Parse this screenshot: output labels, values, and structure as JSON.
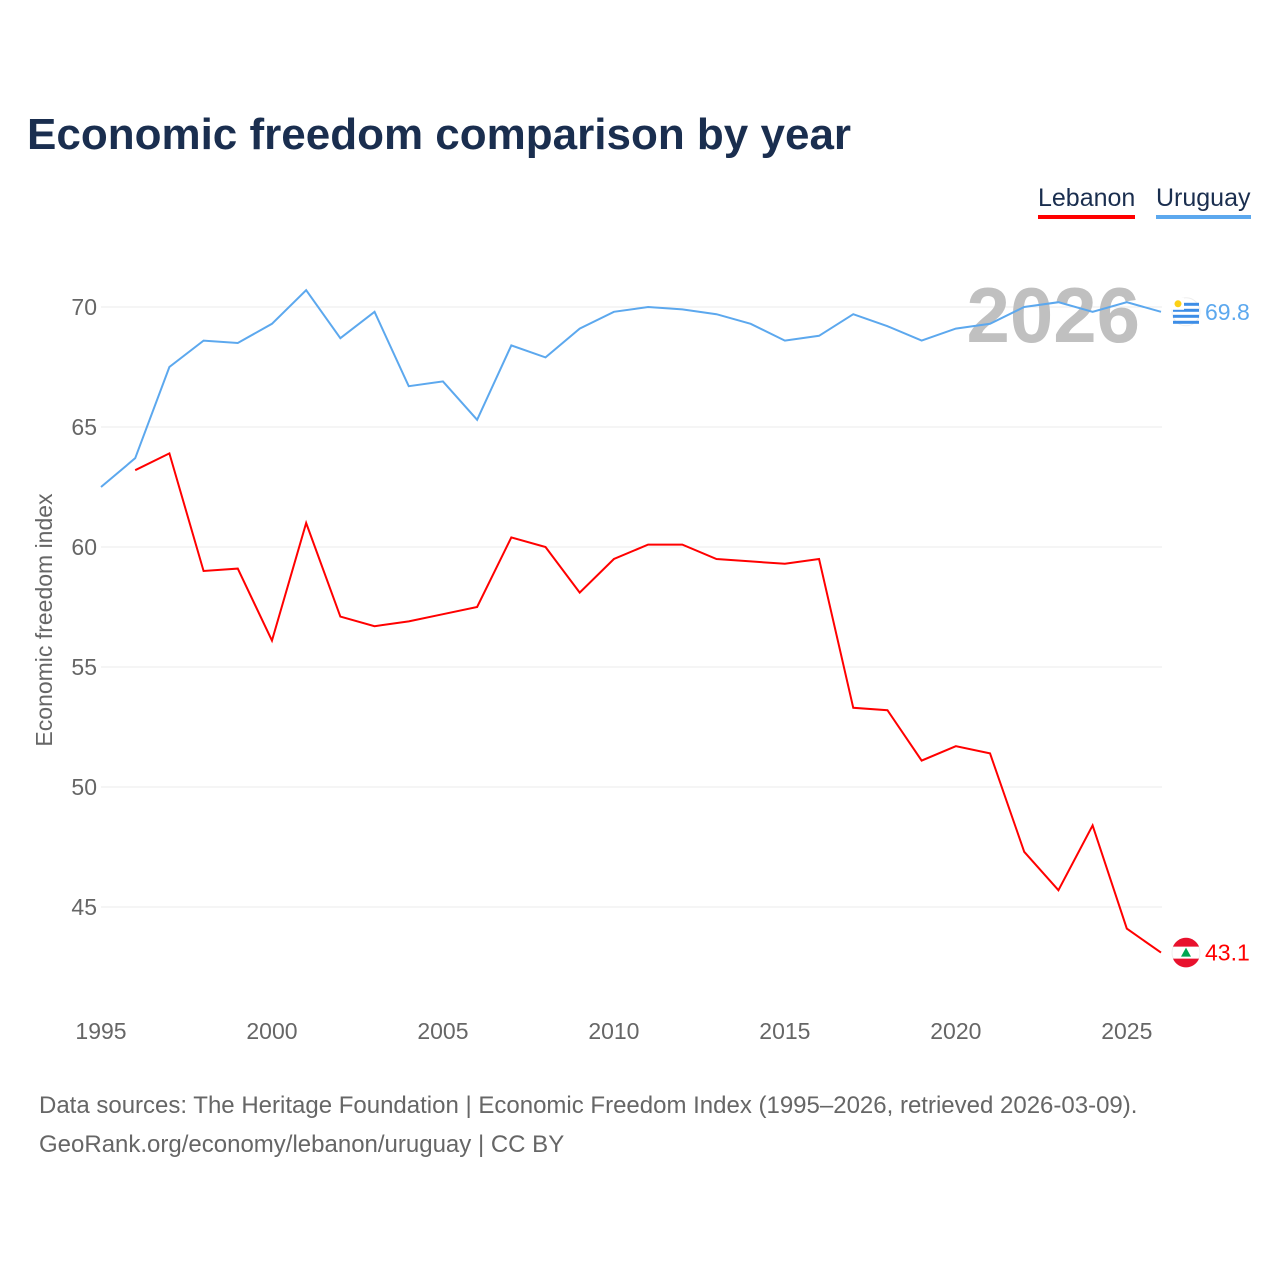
{
  "chart_data": {
    "type": "line",
    "title": "Economic freedom comparison by year",
    "xlabel": "",
    "ylabel": "Economic freedom index",
    "xlim": [
      1995,
      2026
    ],
    "ylim": [
      41.5,
      72
    ],
    "x_ticks": [
      "1995",
      "2000",
      "2005",
      "2010",
      "2015",
      "2020",
      "2025"
    ],
    "y_ticks": [
      "45",
      "50",
      "55",
      "60",
      "65",
      "70"
    ],
    "grid": true,
    "legend_placement": "top-right",
    "year_watermark": "2026",
    "series": [
      {
        "name": "Lebanon",
        "color": "#ff0000",
        "end_label": "43.1",
        "x": [
          1996,
          1997,
          1998,
          1999,
          2000,
          2001,
          2002,
          2003,
          2004,
          2005,
          2006,
          2007,
          2008,
          2009,
          2010,
          2011,
          2012,
          2013,
          2014,
          2015,
          2016,
          2017,
          2018,
          2019,
          2020,
          2021,
          2022,
          2023,
          2024,
          2025,
          2026
        ],
        "values": [
          63.2,
          63.9,
          59.0,
          59.1,
          56.1,
          61.0,
          57.1,
          56.7,
          56.9,
          57.2,
          57.5,
          60.4,
          60.0,
          58.1,
          59.5,
          60.1,
          60.1,
          59.5,
          59.4,
          59.3,
          59.5,
          53.3,
          53.2,
          51.1,
          51.7,
          51.4,
          47.3,
          45.7,
          48.4,
          44.1,
          43.1
        ]
      },
      {
        "name": "Uruguay",
        "color": "#5ca8ee",
        "end_label": "69.8",
        "x": [
          1995,
          1996,
          1997,
          1998,
          1999,
          2000,
          2001,
          2002,
          2003,
          2004,
          2005,
          2006,
          2007,
          2008,
          2009,
          2010,
          2011,
          2012,
          2013,
          2014,
          2015,
          2016,
          2017,
          2018,
          2019,
          2020,
          2021,
          2022,
          2023,
          2024,
          2025,
          2026
        ],
        "values": [
          62.5,
          63.7,
          67.5,
          68.6,
          68.5,
          69.3,
          70.7,
          68.7,
          69.8,
          66.7,
          66.9,
          65.3,
          68.4,
          67.9,
          69.1,
          69.8,
          70.0,
          69.9,
          69.7,
          69.3,
          68.6,
          68.8,
          69.7,
          69.2,
          68.6,
          69.1,
          69.3,
          70.0,
          70.2,
          69.8,
          70.2,
          69.8
        ]
      }
    ]
  },
  "source_line1": "Data sources: The Heritage Foundation | Economic Freedom Index (1995–2026, retrieved 2026-03-09).",
  "source_line2": "GeoRank.org/economy/lebanon/uruguay | CC BY"
}
